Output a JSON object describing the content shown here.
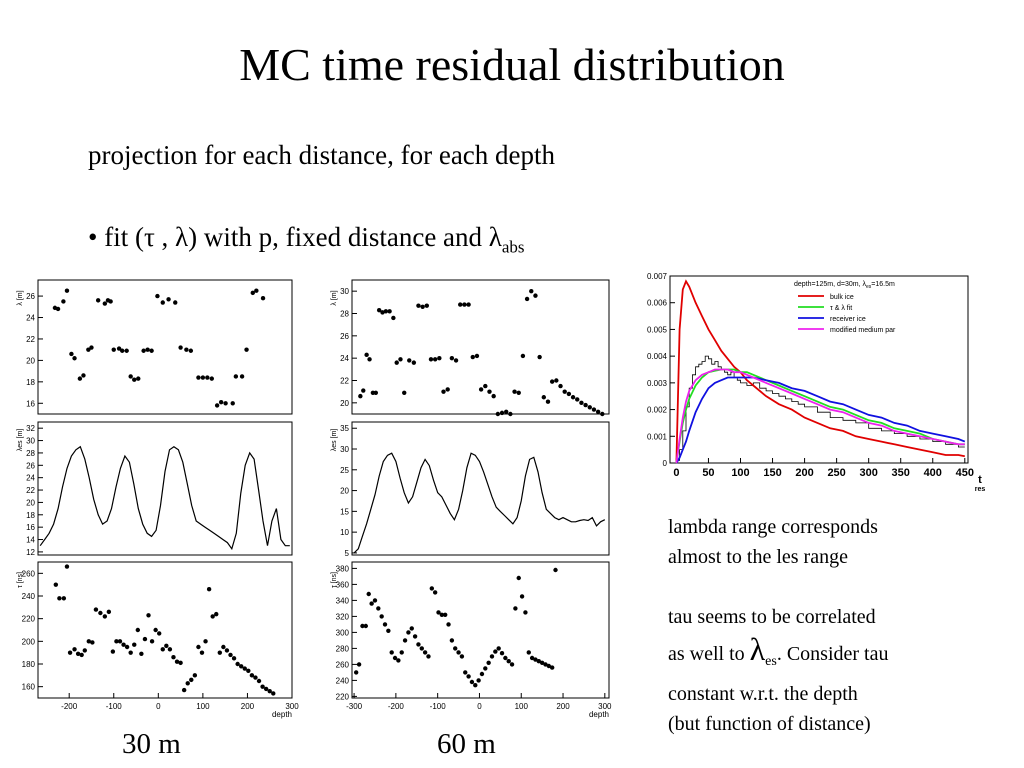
{
  "slide": {
    "title": "MC time residual distribution",
    "subtitle": "projection for each distance, for each depth",
    "bullet_prefix": "• fit (τ , λ) with p, fixed distance and λ",
    "bullet_sub": "abs",
    "caption_left": "30 m",
    "caption_right": "60 m",
    "note_1": "lambda range corresponds",
    "note_2": "almost to the les range",
    "note_3": "tau seems to be correlated",
    "note_4a": "as well to ",
    "note_4_lambda": "λ",
    "note_4_sub": "es",
    "note_4b": ". Consider tau",
    "note_5": "constant w.r.t. the depth",
    "note_6": "(but function of distance)"
  },
  "colors": {
    "bulk": "#e00000",
    "fit": "#22dd22",
    "receiver": "#1010e0",
    "modified": "#ee22ee"
  },
  "chart_data": [
    {
      "type": "scatter",
      "panel": "left-top",
      "ylabel": "λ [m]",
      "xlim": [
        -270,
        300
      ],
      "ylim": [
        15,
        27.5
      ],
      "yticks": [
        16,
        18,
        20,
        22,
        24,
        26
      ],
      "x": [
        -232,
        -225,
        -213,
        -205,
        -195,
        -188,
        -176,
        -168,
        -157,
        -150,
        -135,
        -120,
        -113,
        -107,
        -100,
        -88,
        -81,
        -71,
        -62,
        -54,
        -45,
        -33,
        -24,
        -15,
        -2,
        10,
        23,
        38,
        50,
        63,
        73,
        90,
        100,
        110,
        120,
        132,
        141,
        151,
        167,
        174,
        188,
        198,
        212,
        220,
        235
      ],
      "y": [
        24.9,
        24.8,
        25.5,
        26.5,
        20.6,
        20.2,
        18.3,
        18.6,
        21.0,
        21.2,
        25.6,
        25.3,
        25.6,
        25.5,
        21.0,
        21.1,
        20.9,
        20.9,
        18.5,
        18.2,
        18.3,
        20.9,
        21.0,
        20.9,
        26.0,
        25.4,
        25.7,
        25.4,
        21.2,
        21.0,
        20.9,
        18.4,
        18.4,
        18.4,
        18.3,
        15.8,
        16.1,
        16.0,
        16.0,
        18.5,
        18.5,
        21.0,
        26.3,
        26.5,
        25.8
      ]
    },
    {
      "type": "line",
      "panel": "left-middle",
      "ylabel": "λes [m]",
      "xlim": [
        -270,
        300
      ],
      "ylim": [
        11.5,
        33
      ],
      "yticks": [
        12,
        14,
        16,
        18,
        20,
        22,
        24,
        26,
        28,
        30,
        32
      ],
      "x": [
        -265,
        -255,
        -245,
        -235,
        -225,
        -215,
        -205,
        -195,
        -185,
        -175,
        -165,
        -155,
        -145,
        -135,
        -125,
        -115,
        -105,
        -95,
        -85,
        -75,
        -65,
        -55,
        -45,
        -35,
        -25,
        -15,
        -5,
        5,
        15,
        25,
        35,
        45,
        55,
        65,
        75,
        85,
        95,
        105,
        115,
        125,
        135,
        145,
        155,
        165,
        175,
        185,
        195,
        205,
        215,
        225,
        235,
        245,
        255,
        265,
        275,
        285,
        295
      ],
      "y": [
        13.0,
        14.0,
        15.0,
        16.5,
        19.0,
        22.5,
        25.5,
        27.5,
        28.5,
        29.0,
        27.0,
        24.0,
        20.5,
        18.0,
        16.5,
        17.0,
        19.0,
        22.5,
        25.5,
        27.5,
        26.5,
        23.0,
        19.0,
        16.5,
        15.0,
        14.5,
        15.5,
        19.5,
        25.0,
        28.5,
        29.0,
        28.5,
        26.5,
        23.0,
        19.5,
        17.0,
        16.5,
        16.0,
        15.5,
        15.0,
        14.5,
        14.0,
        13.5,
        12.5,
        15.0,
        21.5,
        26.0,
        28.0,
        27.0,
        22.0,
        17.0,
        13.0,
        17.0,
        19.0,
        14.0,
        13.0,
        13.0
      ]
    },
    {
      "type": "scatter",
      "panel": "left-bottom",
      "ylabel": "τ [ns]",
      "xlim": [
        -270,
        300
      ],
      "ylim": [
        150,
        270
      ],
      "yticks": [
        160,
        180,
        200,
        220,
        240,
        260
      ],
      "xticks": [
        -200,
        -100,
        0,
        100,
        200,
        300
      ],
      "xlabel": "depth",
      "x": [
        -230,
        -222,
        -212,
        -205,
        -198,
        -188,
        -180,
        -172,
        -165,
        -156,
        -148,
        -140,
        -130,
        -120,
        -111,
        -102,
        -94,
        -86,
        -78,
        -70,
        -62,
        -54,
        -46,
        -38,
        -30,
        -22,
        -14,
        -6,
        2,
        10,
        18,
        26,
        34,
        42,
        50,
        58,
        66,
        74,
        82,
        90,
        98,
        106,
        114,
        122,
        130,
        138,
        146,
        154,
        162,
        170,
        178,
        186,
        194,
        202,
        210,
        218,
        226,
        234,
        242,
        250,
        258
      ],
      "y": [
        250,
        238,
        238,
        266,
        190,
        193,
        189,
        188,
        192,
        200,
        199,
        228,
        225,
        222,
        226,
        191,
        200,
        200,
        197,
        195,
        190,
        197,
        210,
        189,
        202,
        223,
        200,
        210,
        207,
        193,
        196,
        193,
        186,
        182,
        181,
        157,
        163,
        166,
        170,
        195,
        190,
        200,
        246,
        222,
        224,
        190,
        195,
        192,
        188,
        185,
        180,
        178,
        176,
        174,
        170,
        168,
        165,
        160,
        158,
        156,
        154
      ]
    },
    {
      "type": "scatter",
      "panel": "right-top",
      "ylabel": "λ [m]",
      "xlim": [
        -305,
        310
      ],
      "ylim": [
        19,
        31
      ],
      "yticks": [
        20,
        22,
        24,
        26,
        28,
        30
      ],
      "x": [
        -285,
        -278,
        -270,
        -263,
        -255,
        -248,
        -240,
        -232,
        -224,
        -215,
        -206,
        -198,
        -189,
        -180,
        -168,
        -157,
        -146,
        -136,
        -126,
        -116,
        -106,
        -96,
        -86,
        -76,
        -66,
        -56,
        -46,
        -36,
        -26,
        -16,
        -6,
        4,
        14,
        24,
        34,
        44,
        54,
        64,
        74,
        84,
        94,
        104,
        114,
        124,
        134,
        144,
        154,
        164,
        174,
        184,
        194,
        204,
        214,
        224,
        234,
        244,
        254,
        264,
        274,
        284,
        294
      ],
      "y": [
        20.6,
        21.1,
        24.3,
        23.9,
        20.9,
        20.9,
        28.3,
        28.1,
        28.2,
        28.2,
        27.6,
        23.6,
        23.9,
        20.9,
        23.8,
        23.6,
        28.7,
        28.6,
        28.7,
        23.9,
        23.9,
        24.0,
        21.0,
        21.2,
        24.0,
        23.8,
        28.8,
        28.8,
        28.8,
        24.1,
        24.2,
        21.2,
        21.5,
        21.0,
        20.6,
        19.0,
        19.1,
        19.2,
        19.0,
        21.0,
        20.9,
        24.2,
        29.3,
        30.0,
        29.6,
        24.1,
        20.5,
        20.1,
        21.9,
        22.0,
        21.5,
        21.0,
        20.8,
        20.5,
        20.3,
        20.0,
        19.8,
        19.6,
        19.4,
        19.2,
        19.0
      ]
    },
    {
      "type": "line",
      "panel": "right-middle",
      "ylabel": "λes [m]",
      "xlim": [
        -305,
        310
      ],
      "ylim": [
        4.5,
        36.5
      ],
      "yticks": [
        5,
        10,
        15,
        20,
        25,
        30,
        35
      ],
      "x": [
        -300,
        -290,
        -280,
        -270,
        -260,
        -250,
        -240,
        -230,
        -220,
        -210,
        -200,
        -190,
        -180,
        -170,
        -160,
        -150,
        -140,
        -130,
        -120,
        -110,
        -100,
        -90,
        -80,
        -70,
        -60,
        -50,
        -40,
        -30,
        -20,
        -10,
        0,
        10,
        20,
        30,
        40,
        50,
        60,
        70,
        80,
        90,
        100,
        110,
        120,
        130,
        140,
        150,
        160,
        170,
        180,
        190,
        200,
        210,
        220,
        230,
        240,
        250,
        260,
        270,
        280,
        290,
        300
      ],
      "y": [
        5.0,
        6.0,
        9.0,
        12.0,
        15.5,
        19.0,
        23.5,
        27.0,
        28.5,
        29.0,
        27.0,
        23.0,
        19.5,
        17.0,
        18.5,
        22.0,
        25.5,
        27.5,
        26.0,
        22.5,
        19.5,
        18.5,
        16.5,
        14.5,
        13.0,
        15.5,
        20.0,
        25.5,
        29.0,
        28.5,
        27.0,
        24.5,
        21.5,
        18.5,
        16.0,
        15.0,
        14.0,
        13.0,
        12.0,
        13.5,
        17.5,
        23.5,
        27.5,
        28.0,
        24.5,
        19.5,
        15.5,
        14.5,
        13.5,
        13.0,
        13.5,
        13.0,
        12.5,
        12.5,
        12.8,
        13.0,
        12.8,
        13.5,
        11.5,
        12.5,
        13.0
      ]
    },
    {
      "type": "scatter",
      "panel": "right-bottom",
      "ylabel": "τ [ns]",
      "xlim": [
        -305,
        310
      ],
      "ylim": [
        218,
        388
      ],
      "yticks": [
        220,
        240,
        260,
        280,
        300,
        320,
        340,
        360,
        380
      ],
      "xticks": [
        -300,
        -200,
        -100,
        0,
        100,
        200,
        300
      ],
      "xlabel": "depth",
      "x": [
        -295,
        -288,
        -280,
        -272,
        -265,
        -258,
        -250,
        -242,
        -234,
        -226,
        -218,
        -210,
        -202,
        -194,
        -186,
        -178,
        -170,
        -162,
        -154,
        -146,
        -138,
        -130,
        -122,
        -114,
        -106,
        -98,
        -90,
        -82,
        -74,
        -66,
        -58,
        -50,
        -42,
        -34,
        -26,
        -18,
        -10,
        -2,
        6,
        14,
        22,
        30,
        38,
        46,
        54,
        62,
        70,
        78,
        86,
        94,
        102,
        110,
        118,
        126,
        134,
        142,
        150,
        158,
        166,
        174,
        182
      ],
      "y": [
        250,
        260,
        308,
        308,
        348,
        336,
        340,
        330,
        320,
        310,
        302,
        275,
        268,
        265,
        275,
        290,
        300,
        305,
        295,
        285,
        280,
        275,
        270,
        355,
        350,
        325,
        322,
        322,
        310,
        290,
        280,
        275,
        270,
        250,
        245,
        238,
        234,
        240,
        248,
        255,
        262,
        270,
        276,
        280,
        274,
        268,
        264,
        260,
        330,
        368,
        345,
        325,
        275,
        268,
        266,
        264,
        262,
        260,
        258,
        256,
        378
      ]
    },
    {
      "type": "line",
      "panel": "inset",
      "xlabel": "t",
      "xlabel_sub": "res",
      "xlim": [
        -10,
        455
      ],
      "ylim": [
        0,
        0.007
      ],
      "xticks": [
        0,
        50,
        100,
        150,
        200,
        250,
        300,
        350,
        400,
        450
      ],
      "yticks": [
        0,
        0.001,
        0.002,
        0.003,
        0.004,
        0.005,
        0.006,
        0.007
      ],
      "legend_placement": "top-right",
      "legend_header_a": "depth=125m, d=30m, λ",
      "legend_header_sub": "es",
      "legend_header_b": "=16.5m",
      "x": [
        0,
        5,
        10,
        15,
        20,
        30,
        40,
        50,
        60,
        70,
        80,
        90,
        100,
        110,
        120,
        140,
        160,
        180,
        200,
        220,
        240,
        260,
        280,
        300,
        320,
        340,
        360,
        380,
        400,
        420,
        440,
        450
      ],
      "series": [
        {
          "name": "bulk ice",
          "y": [
            0,
            0.005,
            0.0065,
            0.0068,
            0.0066,
            0.006,
            0.0055,
            0.005,
            0.0046,
            0.0042,
            0.0039,
            0.0036,
            0.0034,
            0.0031,
            0.0029,
            0.0025,
            0.0022,
            0.002,
            0.0017,
            0.0015,
            0.0013,
            0.0012,
            0.001,
            0.0009,
            0.0008,
            0.0007,
            0.0006,
            0.0005,
            0.0004,
            0.0003,
            0.0003,
            0.00025
          ]
        },
        {
          "name": "τ & λ fit",
          "y": [
            0,
            0.0008,
            0.0015,
            0.002,
            0.0024,
            0.0029,
            0.0032,
            0.0034,
            0.00345,
            0.0035,
            0.0035,
            0.0035,
            0.0034,
            0.0034,
            0.0033,
            0.0031,
            0.0029,
            0.0027,
            0.0025,
            0.0023,
            0.0021,
            0.002,
            0.0018,
            0.0016,
            0.0015,
            0.0013,
            0.0012,
            0.0011,
            0.0009,
            0.0008,
            0.0007,
            0.0007
          ]
        },
        {
          "name": "receiver ice",
          "y": [
            0,
            0.0002,
            0.0005,
            0.0008,
            0.0012,
            0.0019,
            0.0024,
            0.0028,
            0.003,
            0.0031,
            0.0032,
            0.0032,
            0.0032,
            0.0032,
            0.0032,
            0.0031,
            0.003,
            0.0028,
            0.0027,
            0.0025,
            0.0023,
            0.0022,
            0.002,
            0.0018,
            0.0017,
            0.0015,
            0.0014,
            0.0012,
            0.0011,
            0.001,
            0.0009,
            0.0008
          ]
        },
        {
          "name": "modified medium par",
          "y": [
            0,
            0.0009,
            0.0017,
            0.0023,
            0.0027,
            0.0031,
            0.0033,
            0.0034,
            0.0035,
            0.0035,
            0.0035,
            0.0034,
            0.0034,
            0.0033,
            0.0032,
            0.003,
            0.0028,
            0.0026,
            0.0024,
            0.0022,
            0.002,
            0.0019,
            0.0017,
            0.0015,
            0.0014,
            0.0012,
            0.0011,
            0.001,
            0.0009,
            0.0008,
            0.0007,
            0.0007
          ]
        }
      ],
      "histogram": {
        "x": [
          0,
          5,
          10,
          15,
          20,
          25,
          30,
          35,
          40,
          45,
          50,
          55,
          60,
          65,
          70,
          75,
          80,
          85,
          90,
          95,
          100,
          110,
          120,
          130,
          140,
          150,
          160,
          170,
          180,
          190,
          200,
          220,
          240,
          260,
          280,
          300,
          320,
          340,
          360,
          380,
          400,
          420,
          440
        ],
        "y": [
          0.0001,
          0.0005,
          0.0012,
          0.0021,
          0.0028,
          0.0033,
          0.0036,
          0.0037,
          0.0038,
          0.004,
          0.0039,
          0.0037,
          0.0038,
          0.0036,
          0.0035,
          0.0034,
          0.0033,
          0.0034,
          0.0032,
          0.0031,
          0.003,
          0.0029,
          0.003,
          0.0028,
          0.0027,
          0.0026,
          0.0025,
          0.0024,
          0.0023,
          0.0022,
          0.0021,
          0.0019,
          0.0017,
          0.0016,
          0.0015,
          0.0013,
          0.0012,
          0.0011,
          0.001,
          0.0009,
          0.0008,
          0.0007,
          0.0006
        ]
      }
    }
  ]
}
